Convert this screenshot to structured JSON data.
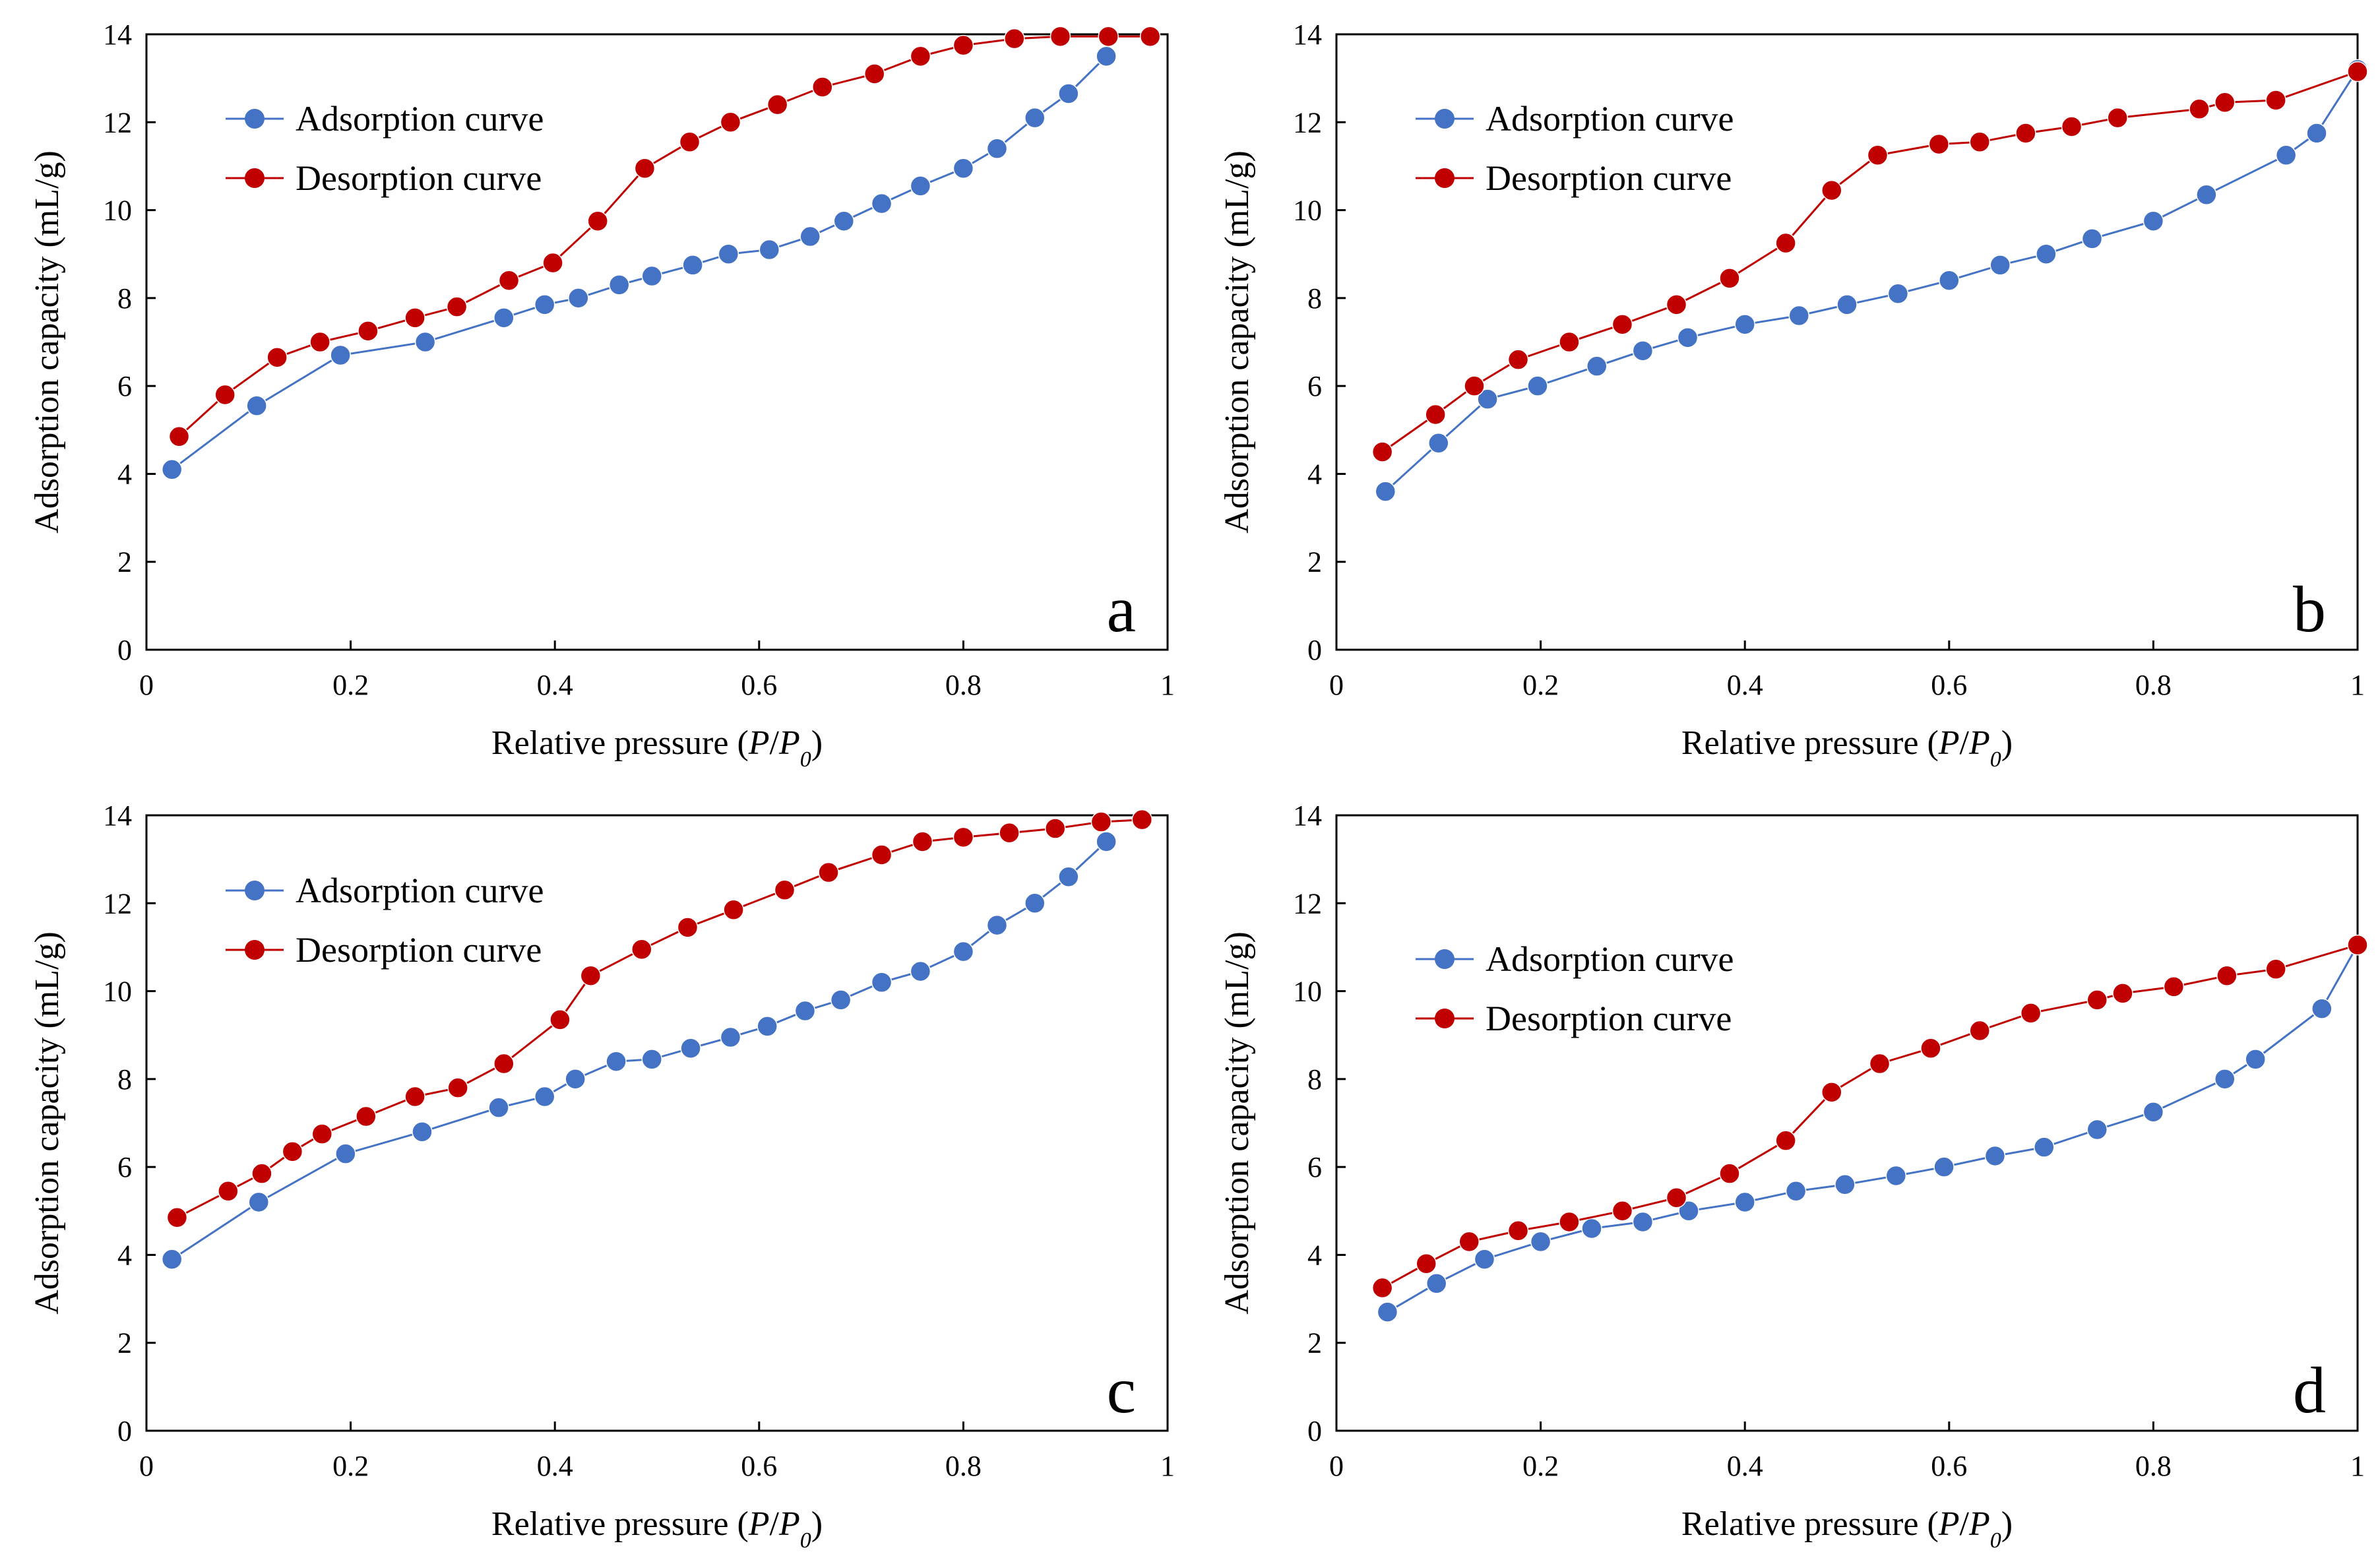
{
  "chart_data": [
    {
      "type": "line",
      "panel_label": "a",
      "xlabel_prefix": "Relative pressure (",
      "xlabel_P": "P",
      "xlabel_slash": "/",
      "xlabel_P0": "P",
      "xlabel_sub": "0",
      "xlabel_suffix": ")",
      "ylabel": "Adsorption capacity (mL/g)",
      "xlim": [
        0,
        1
      ],
      "ylim": [
        0,
        14
      ],
      "xticks": [
        "0",
        "0.2",
        "0.4",
        "0.6",
        "0.8",
        "1"
      ],
      "yticks": [
        "0",
        "2",
        "4",
        "6",
        "8",
        "10",
        "12",
        "14"
      ],
      "legend_position": "top-left",
      "grid": false,
      "series": [
        {
          "name": "Adsorption curve",
          "color": "#4472c4",
          "x": [
            0.025,
            0.108,
            0.19,
            0.273,
            0.35,
            0.39,
            0.423,
            0.463,
            0.495,
            0.535,
            0.57,
            0.61,
            0.65,
            0.683,
            0.72,
            0.758,
            0.8,
            0.833,
            0.87,
            0.903,
            0.94
          ],
          "y": [
            4.1,
            5.55,
            6.7,
            7.0,
            7.55,
            7.85,
            8.0,
            8.3,
            8.5,
            8.75,
            9.0,
            9.1,
            9.4,
            9.75,
            10.15,
            10.55,
            10.95,
            11.4,
            12.1,
            12.65,
            13.5
          ]
        },
        {
          "name": "Desorption curve",
          "color": "#c00000",
          "x": [
            0.032,
            0.077,
            0.128,
            0.17,
            0.217,
            0.263,
            0.304,
            0.355,
            0.398,
            0.442,
            0.488,
            0.532,
            0.572,
            0.618,
            0.662,
            0.713,
            0.758,
            0.8,
            0.85,
            0.895,
            0.942,
            0.983
          ],
          "y": [
            4.85,
            5.8,
            6.65,
            7.0,
            7.25,
            7.55,
            7.8,
            8.4,
            8.8,
            9.75,
            10.95,
            11.55,
            12.0,
            12.4,
            12.8,
            13.1,
            13.5,
            13.75,
            13.9,
            13.95,
            13.95,
            13.95
          ]
        }
      ]
    },
    {
      "type": "line",
      "panel_label": "b",
      "xlabel_prefix": "Relative pressure (",
      "xlabel_P": "P",
      "xlabel_slash": "/",
      "xlabel_P0": "P",
      "xlabel_sub": "0",
      "xlabel_suffix": ")",
      "ylabel": "Adsorption capacity (mL/g)",
      "xlim": [
        0,
        1
      ],
      "ylim": [
        0,
        14
      ],
      "xticks": [
        "0",
        "0.2",
        "0.4",
        "0.6",
        "0.8",
        "1"
      ],
      "yticks": [
        "0",
        "2",
        "4",
        "6",
        "8",
        "10",
        "12",
        "14"
      ],
      "legend_position": "top-left",
      "grid": false,
      "series": [
        {
          "name": "Adsorption curve",
          "color": "#4472c4",
          "x": [
            0.048,
            0.1,
            0.148,
            0.197,
            0.255,
            0.3,
            0.344,
            0.4,
            0.453,
            0.5,
            0.55,
            0.6,
            0.65,
            0.695,
            0.74,
            0.8,
            0.852,
            0.93,
            0.96,
            1.0
          ],
          "y": [
            3.6,
            4.7,
            5.7,
            6.0,
            6.45,
            6.8,
            7.1,
            7.4,
            7.6,
            7.85,
            8.1,
            8.4,
            8.75,
            9.0,
            9.35,
            9.75,
            10.35,
            11.25,
            11.75,
            13.2
          ]
        },
        {
          "name": "Desorption curve",
          "color": "#c00000",
          "x": [
            0.045,
            0.097,
            0.135,
            0.178,
            0.228,
            0.28,
            0.333,
            0.385,
            0.44,
            0.485,
            0.53,
            0.59,
            0.63,
            0.675,
            0.72,
            0.765,
            0.845,
            0.87,
            0.92,
            1.0
          ],
          "y": [
            4.5,
            5.35,
            6.0,
            6.6,
            7.0,
            7.4,
            7.85,
            8.45,
            9.25,
            10.45,
            11.25,
            11.5,
            11.55,
            11.75,
            11.9,
            12.1,
            12.3,
            12.45,
            12.5,
            13.15
          ]
        }
      ]
    },
    {
      "type": "line",
      "panel_label": "c",
      "xlabel_prefix": "Relative pressure (",
      "xlabel_P": "P",
      "xlabel_slash": "/",
      "xlabel_P0": "P",
      "xlabel_sub": "0",
      "xlabel_suffix": ")",
      "ylabel": "Adsorption capacity (mL/g)",
      "xlim": [
        0,
        1
      ],
      "ylim": [
        0,
        14
      ],
      "xticks": [
        "0",
        "0.2",
        "0.4",
        "0.6",
        "0.8",
        "1"
      ],
      "yticks": [
        "0",
        "2",
        "4",
        "6",
        "8",
        "10",
        "12",
        "14"
      ],
      "legend_position": "top-left",
      "grid": false,
      "series": [
        {
          "name": "Adsorption curve",
          "color": "#4472c4",
          "x": [
            0.025,
            0.11,
            0.195,
            0.27,
            0.345,
            0.39,
            0.42,
            0.46,
            0.495,
            0.533,
            0.572,
            0.608,
            0.645,
            0.68,
            0.72,
            0.758,
            0.8,
            0.833,
            0.87,
            0.903,
            0.94
          ],
          "y": [
            3.9,
            5.2,
            6.3,
            6.8,
            7.35,
            7.6,
            8.0,
            8.4,
            8.45,
            8.7,
            8.95,
            9.2,
            9.55,
            9.8,
            10.2,
            10.45,
            10.9,
            11.5,
            12.0,
            12.6,
            13.4
          ]
        },
        {
          "name": "Desorption curve",
          "color": "#c00000",
          "x": [
            0.03,
            0.08,
            0.113,
            0.143,
            0.172,
            0.215,
            0.263,
            0.305,
            0.35,
            0.405,
            0.435,
            0.485,
            0.53,
            0.575,
            0.625,
            0.668,
            0.72,
            0.76,
            0.8,
            0.845,
            0.89,
            0.935,
            0.975
          ],
          "y": [
            4.85,
            5.45,
            5.85,
            6.35,
            6.75,
            7.15,
            7.6,
            7.8,
            8.35,
            9.35,
            10.35,
            10.95,
            11.45,
            11.85,
            12.3,
            12.7,
            13.1,
            13.4,
            13.5,
            13.6,
            13.7,
            13.85,
            13.9
          ]
        }
      ]
    },
    {
      "type": "line",
      "panel_label": "d",
      "xlabel_prefix": "Relative pressure (",
      "xlabel_P": "P",
      "xlabel_slash": "/",
      "xlabel_P0": "P",
      "xlabel_sub": "0",
      "xlabel_suffix": ")",
      "ylabel": "Adsorption capacity (mL/g)",
      "xlim": [
        0,
        1
      ],
      "ylim": [
        0,
        14
      ],
      "xticks": [
        "0",
        "0.2",
        "0.4",
        "0.6",
        "0.8",
        "1"
      ],
      "yticks": [
        "0",
        "2",
        "4",
        "6",
        "8",
        "10",
        "12",
        "14"
      ],
      "legend_position": "top-left",
      "grid": false,
      "series": [
        {
          "name": "Adsorption curve",
          "color": "#4472c4",
          "x": [
            0.05,
            0.098,
            0.145,
            0.2,
            0.25,
            0.3,
            0.345,
            0.4,
            0.45,
            0.498,
            0.548,
            0.595,
            0.645,
            0.693,
            0.745,
            0.8,
            0.87,
            0.9,
            0.965,
            1.0
          ],
          "y": [
            2.7,
            3.35,
            3.9,
            4.3,
            4.6,
            4.75,
            5.0,
            5.2,
            5.45,
            5.6,
            5.8,
            6.0,
            6.25,
            6.45,
            6.85,
            7.25,
            8.0,
            8.45,
            9.6,
            11.05
          ]
        },
        {
          "name": "Desorption curve",
          "color": "#c00000",
          "x": [
            0.045,
            0.088,
            0.13,
            0.178,
            0.228,
            0.28,
            0.333,
            0.385,
            0.44,
            0.485,
            0.532,
            0.582,
            0.63,
            0.68,
            0.745,
            0.77,
            0.82,
            0.872,
            0.92,
            1.0
          ],
          "y": [
            3.25,
            3.8,
            4.3,
            4.55,
            4.75,
            5.0,
            5.3,
            5.85,
            6.6,
            7.7,
            8.35,
            8.7,
            9.1,
            9.5,
            9.8,
            9.95,
            10.1,
            10.35,
            10.5,
            11.05
          ]
        }
      ]
    }
  ]
}
